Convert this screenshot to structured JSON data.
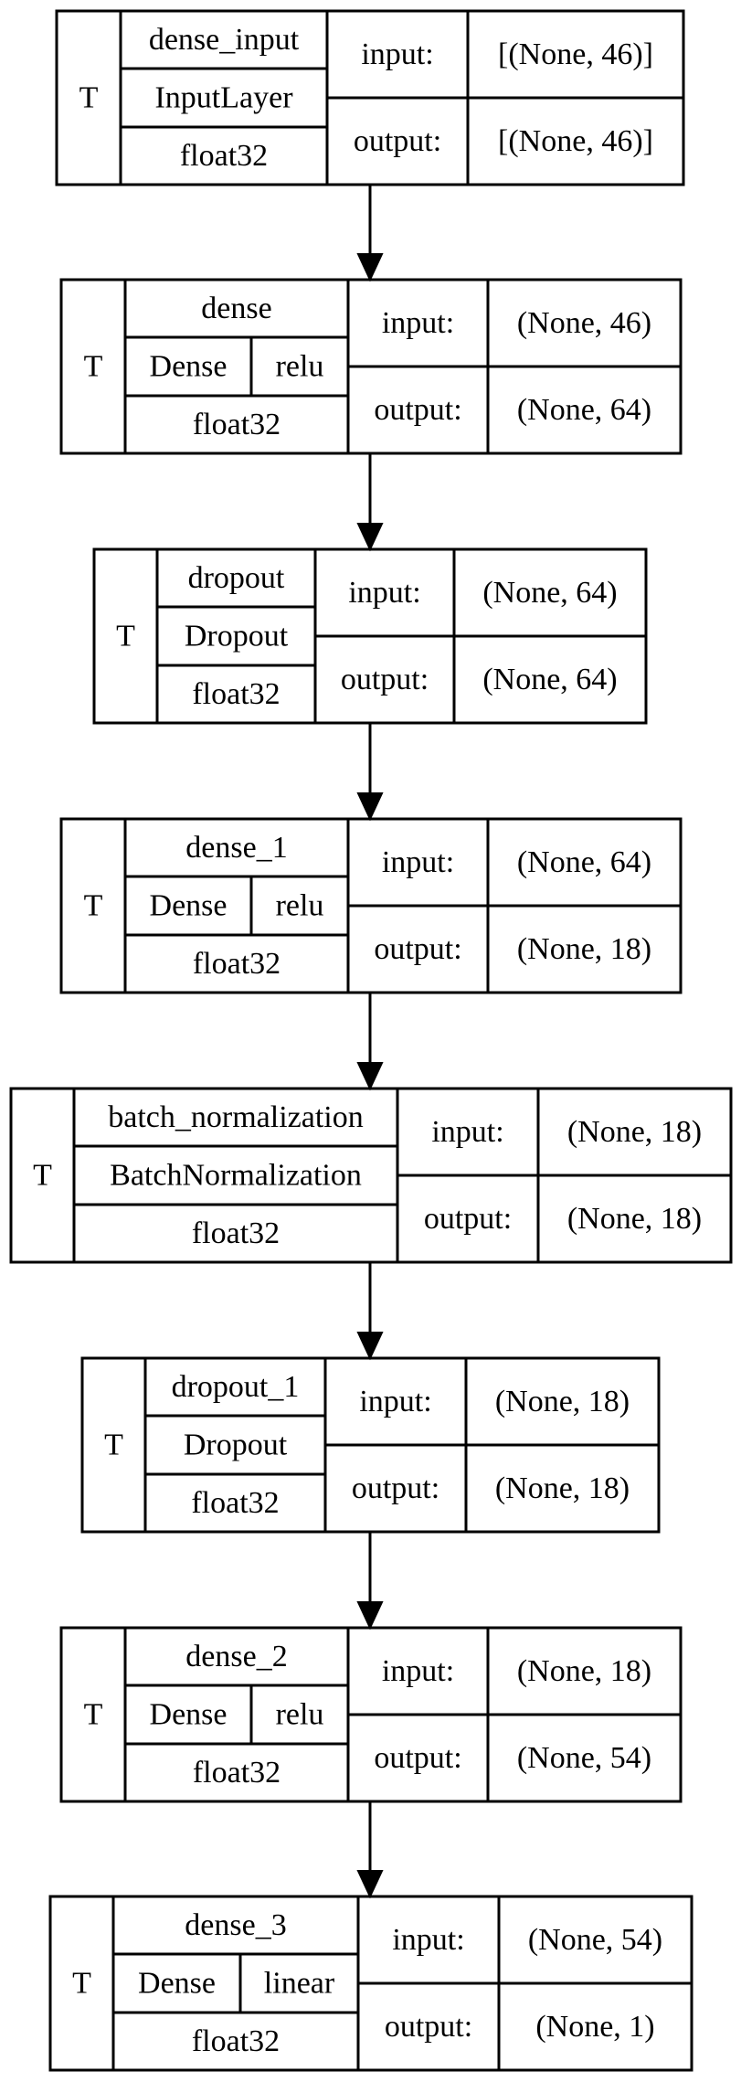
{
  "layers": [
    {
      "trainable": "T",
      "name": "dense_input",
      "class_name": "InputLayer",
      "activation": "",
      "dtype": "float32",
      "in_label": "input:",
      "in_shape": "[(None, 46)]",
      "out_label": "output:",
      "out_shape": "[(None, 46)]"
    },
    {
      "trainable": "T",
      "name": "dense",
      "class_name": "Dense",
      "activation": "relu",
      "dtype": "float32",
      "in_label": "input:",
      "in_shape": "(None, 46)",
      "out_label": "output:",
      "out_shape": "(None, 64)"
    },
    {
      "trainable": "T",
      "name": "dropout",
      "class_name": "Dropout",
      "activation": "",
      "dtype": "float32",
      "in_label": "input:",
      "in_shape": "(None, 64)",
      "out_label": "output:",
      "out_shape": "(None, 64)"
    },
    {
      "trainable": "T",
      "name": "dense_1",
      "class_name": "Dense",
      "activation": "relu",
      "dtype": "float32",
      "in_label": "input:",
      "in_shape": "(None, 64)",
      "out_label": "output:",
      "out_shape": "(None, 18)"
    },
    {
      "trainable": "T",
      "name": "batch_normalization",
      "class_name": "BatchNormalization",
      "activation": "",
      "dtype": "float32",
      "in_label": "input:",
      "in_shape": "(None, 18)",
      "out_label": "output:",
      "out_shape": "(None, 18)"
    },
    {
      "trainable": "T",
      "name": "dropout_1",
      "class_name": "Dropout",
      "activation": "",
      "dtype": "float32",
      "in_label": "input:",
      "in_shape": "(None, 18)",
      "out_label": "output:",
      "out_shape": "(None, 18)"
    },
    {
      "trainable": "T",
      "name": "dense_2",
      "class_name": "Dense",
      "activation": "relu",
      "dtype": "float32",
      "in_label": "input:",
      "in_shape": "(None, 18)",
      "out_label": "output:",
      "out_shape": "(None, 54)"
    },
    {
      "trainable": "T",
      "name": "dense_3",
      "class_name": "Dense",
      "activation": "linear",
      "dtype": "float32",
      "in_label": "input:",
      "in_shape": "(None, 54)",
      "out_label": "output:",
      "out_shape": "(None, 1)"
    }
  ]
}
